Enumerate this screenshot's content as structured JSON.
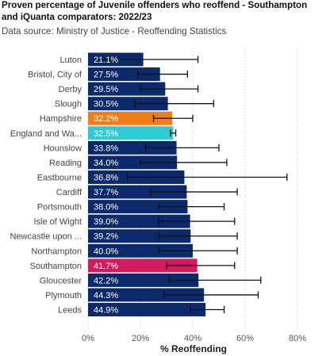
{
  "header": {
    "title": "Proven percentage of Juvenile offenders who reoffend - Southampton and iQuanta comparators: 2022/23",
    "subtitle": "Data source: Ministry of Justice - Reoffending Statistics"
  },
  "colors": {
    "default": "#0c2a6b",
    "hampshire": "#f07d1a",
    "england": "#2ecbd6",
    "southampton": "#d6185f",
    "error_bar": "#111111",
    "grid": "#d9d9d9"
  },
  "chart_data": {
    "type": "bar",
    "orientation": "horizontal",
    "xlabel": "% Reoffending",
    "xlim": [
      0,
      80
    ],
    "xticks": [
      "0%",
      "20%",
      "40%",
      "60%",
      "80%"
    ],
    "grid": true,
    "categories": [
      "Luton",
      "Bristol, City of",
      "Derby",
      "Slough",
      "Hampshire",
      "England and Wa...",
      "Hounslow",
      "Reading",
      "Eastbourne",
      "Cardiff",
      "Portsmouth",
      "Isle of Wight",
      "Newcastle upon ...",
      "Northampton",
      "Southampton",
      "Gloucester",
      "Plymouth",
      "Leeds"
    ],
    "values": [
      21.1,
      27.5,
      29.5,
      30.5,
      32.2,
      32.5,
      33.8,
      34.0,
      36.8,
      37.7,
      38.0,
      39.0,
      39.2,
      40.0,
      41.7,
      42.2,
      44.3,
      44.9
    ],
    "labels": [
      "21.1%",
      "27.5%",
      "29.5%",
      "30.5%",
      "32.2%",
      "32.5%",
      "33.8%",
      "34.0%",
      "36.8%",
      "37.7%",
      "38.0%",
      "39.0%",
      "39.2%",
      "40.0%",
      "41.7%",
      "42.2%",
      "44.3%",
      "44.9%"
    ],
    "error_low": [
      5,
      19,
      20,
      18,
      25,
      31.5,
      22,
      20,
      15,
      24,
      27,
      27,
      27,
      27,
      30,
      31,
      29,
      39
    ],
    "error_high": [
      42,
      38,
      42,
      48,
      40,
      33.5,
      50,
      53,
      76,
      57,
      52,
      56,
      57,
      57,
      56,
      66,
      65,
      52
    ],
    "highlight": {
      "Hampshire": "hampshire",
      "England and Wa...": "england",
      "Southampton": "southampton"
    }
  }
}
